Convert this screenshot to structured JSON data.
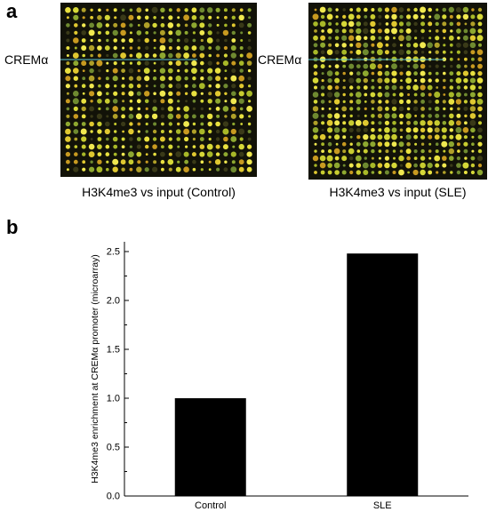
{
  "panel_a": {
    "letter": "a",
    "marker_label": "CREMα",
    "images": [
      {
        "caption": "H3K4me3 vs input (Control)"
      },
      {
        "caption": "H3K4me3 vs input (SLE)"
      }
    ]
  },
  "panel_b": {
    "letter": "b"
  },
  "colors": {
    "bar": "#000000",
    "marker_line": "#5fc8d8",
    "array_background": "#121208"
  },
  "chart_data": {
    "type": "bar",
    "categories": [
      "Control",
      "SLE"
    ],
    "values": [
      1.0,
      2.48
    ],
    "xlabel": "",
    "ylabel": "H3K4me3 enrichment at CREMα promoter (microarray)",
    "ylim": [
      0,
      2.6
    ],
    "yticks": [
      "0.0",
      "0.5",
      "1.0",
      "1.5",
      "2.0",
      "2.5"
    ],
    "grid": false
  }
}
